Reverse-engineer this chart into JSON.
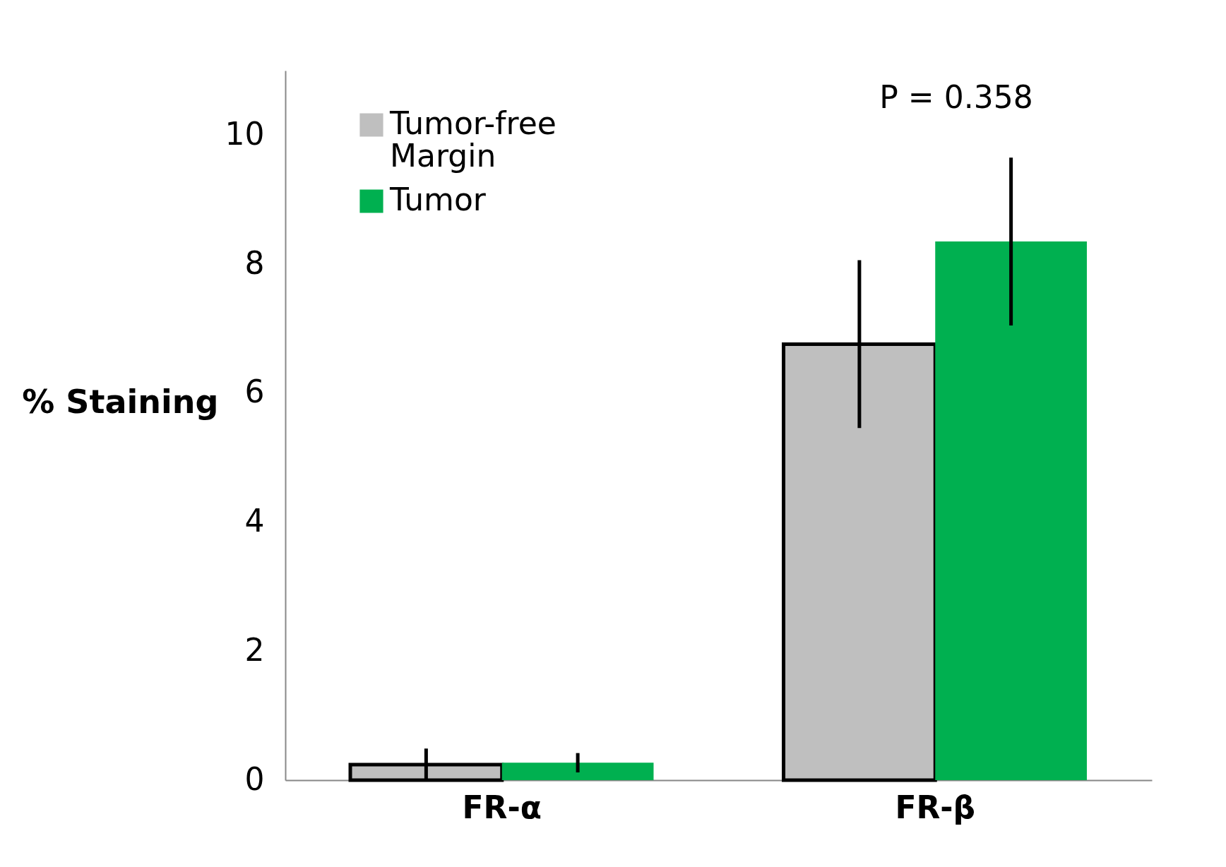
{
  "chart_data": {
    "type": "bar",
    "ylabel": "% Staining",
    "categories": [
      "FR-α",
      "FR-β"
    ],
    "series": [
      {
        "name": "Tumor-free Margin",
        "color": "#bfbfbf",
        "values": [
          0.24,
          6.76
        ],
        "errors": [
          0.25,
          1.3
        ]
      },
      {
        "name": "Tumor",
        "color": "#00b050",
        "values": [
          0.27,
          8.35
        ],
        "errors": [
          0.15,
          1.3
        ]
      }
    ],
    "ylim": [
      0,
      11
    ],
    "yticks": [
      0,
      2,
      4,
      6,
      8,
      10
    ],
    "grid": false,
    "legend": "top left",
    "annotations": [
      "P = 0.358"
    ]
  }
}
